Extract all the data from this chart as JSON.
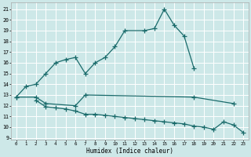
{
  "xlabel": "Humidex (Indice chaleur)",
  "bg_color": "#cde8e8",
  "grid_color": "#ffffff",
  "line_color": "#1a6b6b",
  "xlim": [
    -0.5,
    23.5
  ],
  "ylim": [
    8.8,
    21.6
  ],
  "yticks": [
    9,
    10,
    11,
    12,
    13,
    14,
    15,
    16,
    17,
    18,
    19,
    20,
    21
  ],
  "xticks": [
    0,
    1,
    2,
    3,
    4,
    5,
    6,
    7,
    8,
    9,
    10,
    11,
    12,
    13,
    14,
    15,
    16,
    17,
    18,
    19,
    20,
    21,
    22,
    23
  ],
  "line1_x": [
    0,
    1,
    2,
    3,
    4,
    5,
    6,
    7,
    8,
    9,
    10,
    11,
    13,
    14,
    15,
    16,
    17,
    18
  ],
  "line1_y": [
    12.8,
    13.8,
    14.0,
    15.0,
    16.0,
    16.3,
    16.5,
    15.0,
    16.0,
    16.5,
    17.5,
    19.0,
    19.0,
    19.2,
    21.0,
    19.5,
    18.5,
    15.5
  ],
  "line2_x": [
    0,
    2,
    3,
    6,
    7,
    18,
    22
  ],
  "line2_y": [
    12.8,
    12.8,
    12.2,
    12.0,
    13.0,
    12.8,
    12.2
  ],
  "line3_x": [
    2,
    3,
    4,
    5,
    6,
    7,
    8,
    9,
    10,
    11,
    12,
    13,
    14,
    15,
    16,
    17,
    18,
    19,
    20,
    21,
    22,
    23
  ],
  "line3_y": [
    12.5,
    11.9,
    11.8,
    11.7,
    11.5,
    11.2,
    11.2,
    11.1,
    11.0,
    10.9,
    10.8,
    10.7,
    10.6,
    10.5,
    10.4,
    10.3,
    10.1,
    10.0,
    9.8,
    10.5,
    10.2,
    9.5
  ]
}
